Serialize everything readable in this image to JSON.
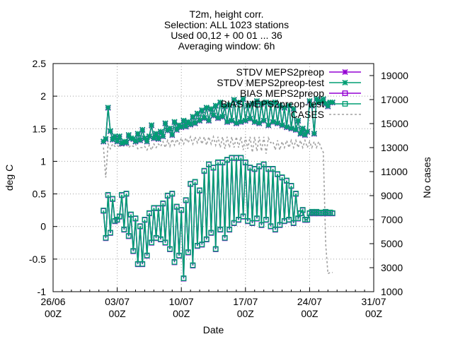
{
  "chart_data": {
    "type": "line",
    "title_lines": [
      "T2m, height corr.",
      "Selection: ALL    1023 stations",
      "Used 00,12 + 00 01 ... 36",
      "Averaging window:  6h"
    ],
    "xlabel": "Date",
    "ylabel": "deg C",
    "y2label": "No cases",
    "xlim_days": [
      0,
      35
    ],
    "ylim": [
      -1,
      2.5
    ],
    "y2lim": [
      1000,
      20000
    ],
    "x_ticks": [
      {
        "day": 0,
        "line1": "26/06",
        "line2": "00Z"
      },
      {
        "day": 7,
        "line1": "03/07",
        "line2": "00Z"
      },
      {
        "day": 14,
        "line1": "10/07",
        "line2": "00Z"
      },
      {
        "day": 21,
        "line1": "17/07",
        "line2": "00Z"
      },
      {
        "day": 28,
        "line1": "24/07",
        "line2": "00Z"
      },
      {
        "day": 35,
        "line1": "31/07",
        "line2": "00Z"
      }
    ],
    "y_ticks": [
      "-1",
      "-0.5",
      "0",
      "0.5",
      "1",
      "1.5",
      "2",
      "2.5"
    ],
    "y2_ticks": [
      "1000",
      "3000",
      "5000",
      "7000",
      "9000",
      "11000",
      "13000",
      "15000",
      "17000",
      "19000"
    ],
    "grid": true,
    "legend_position": "top-right",
    "series": [
      {
        "name": "STDV MEPS2preop",
        "color": "#9400d3",
        "marker": "star"
      },
      {
        "name": "STDV MEPS2preop-test",
        "color": "#009e73",
        "marker": "star"
      },
      {
        "name": "BIAS MEPS2preop",
        "color": "#9400d3",
        "marker": "square"
      },
      {
        "name": "BIAS MEPS2preop-test",
        "color": "#009e73",
        "marker": "square"
      },
      {
        "name": "CASES",
        "color": "#a0a0a0",
        "marker": "none"
      }
    ],
    "data_day_range": [
      5.5,
      30.5
    ],
    "data_step_hours": 6,
    "stdv_values": [
      1.3,
      1.34,
      1.82,
      1.46,
      1.33,
      1.38,
      1.3,
      1.38,
      1.27,
      1.3,
      1.28,
      1.4,
      1.35,
      1.34,
      1.3,
      1.42,
      1.32,
      1.48,
      1.35,
      1.3,
      1.38,
      1.55,
      1.35,
      1.42,
      1.34,
      1.45,
      1.38,
      1.58,
      1.47,
      1.5,
      1.4,
      1.6,
      1.48,
      1.55,
      1.52,
      1.62,
      1.53,
      1.6,
      1.56,
      1.68,
      1.58,
      1.73,
      1.62,
      1.78,
      1.66,
      1.82,
      1.62,
      1.8,
      1.7,
      1.85,
      1.66,
      1.9,
      1.68,
      1.84,
      1.6,
      1.86,
      1.62,
      1.94,
      1.58,
      1.9,
      1.6,
      1.95,
      1.62,
      1.85,
      1.65,
      1.88,
      1.6,
      1.92,
      1.58,
      1.88,
      1.62,
      1.9,
      1.55,
      1.88,
      1.6,
      1.9,
      1.58,
      1.85,
      1.55,
      1.82,
      1.52,
      1.85,
      1.5,
      1.8,
      1.48,
      1.62,
      1.42,
      1.5,
      1.4,
      1.45,
      1.92,
      1.85,
      1.42,
      1.95,
      1.9,
      1.92,
      1.95,
      1.88,
      1.84,
      1.9,
      1.9
    ],
    "bias_values": [
      0.24,
      -0.18,
      0.48,
      -0.1,
      0.42,
      0.08,
      0.1,
      0.15,
      0.48,
      -0.05,
      0.5,
      -0.15,
      0.18,
      -0.38,
      0.12,
      -0.58,
      0.0,
      -0.58,
      0.1,
      -0.45,
      0.2,
      -0.25,
      0.28,
      -0.18,
      0.28,
      -0.2,
      0.35,
      -0.25,
      0.47,
      -0.35,
      0.5,
      -0.55,
      0.3,
      -0.45,
      0.25,
      -0.8,
      0.4,
      -0.4,
      0.65,
      -0.6,
      0.68,
      -0.3,
      0.55,
      -0.28,
      0.85,
      -0.2,
      0.95,
      -0.1,
      0.9,
      -0.35,
      0.98,
      -0.05,
      0.98,
      -0.18,
      1.02,
      -0.05,
      1.05,
      0.05,
      1.05,
      0.1,
      1.05,
      0.15,
      0.98,
      0.08,
      0.9,
      0.05,
      0.88,
      0.12,
      0.92,
      0.02,
      0.95,
      0.1,
      0.88,
      0.0,
      0.88,
      -0.05,
      0.8,
      0.02,
      0.75,
      0.08,
      0.7,
      0.1,
      0.62,
      0.05,
      0.5,
      0.12,
      0.2,
      0.25,
      0.1,
      0.1,
      0.2,
      0.22,
      0.2,
      0.22,
      0.2,
      0.21,
      0.2,
      0.22,
      0.2,
      0.21,
      0.2
    ],
    "cases_values": [
      13000,
      10500,
      13300,
      12900,
      13300,
      13100,
      13200,
      13000,
      13300,
      13100,
      13200,
      13000,
      13200,
      13100,
      13300,
      12900,
      13000,
      13000,
      13100,
      12800,
      13200,
      12800,
      13300,
      13000,
      13300,
      13100,
      13500,
      13000,
      13600,
      13100,
      13700,
      13200,
      13700,
      13300,
      13800,
      13300,
      13800,
      13400,
      13900,
      13300,
      13900,
      13400,
      13900,
      13300,
      13900,
      13200,
      13900,
      13300,
      13900,
      13200,
      13900,
      13000,
      13900,
      12900,
      13900,
      13000,
      13900,
      13000,
      13900,
      13000,
      13900,
      12800,
      13900,
      12900,
      13900,
      12600,
      13900,
      12700,
      13900,
      12700,
      13900,
      12500,
      13800,
      13400,
      13500,
      12800,
      13600,
      12800,
      13500,
      13000,
      13600,
      13000,
      13600,
      13000,
      13600,
      13000,
      13600,
      13000,
      13600,
      13000,
      13500,
      13000,
      13500,
      13000,
      13500,
      13000,
      12600,
      5000,
      2500,
      2600,
      2600
    ]
  }
}
